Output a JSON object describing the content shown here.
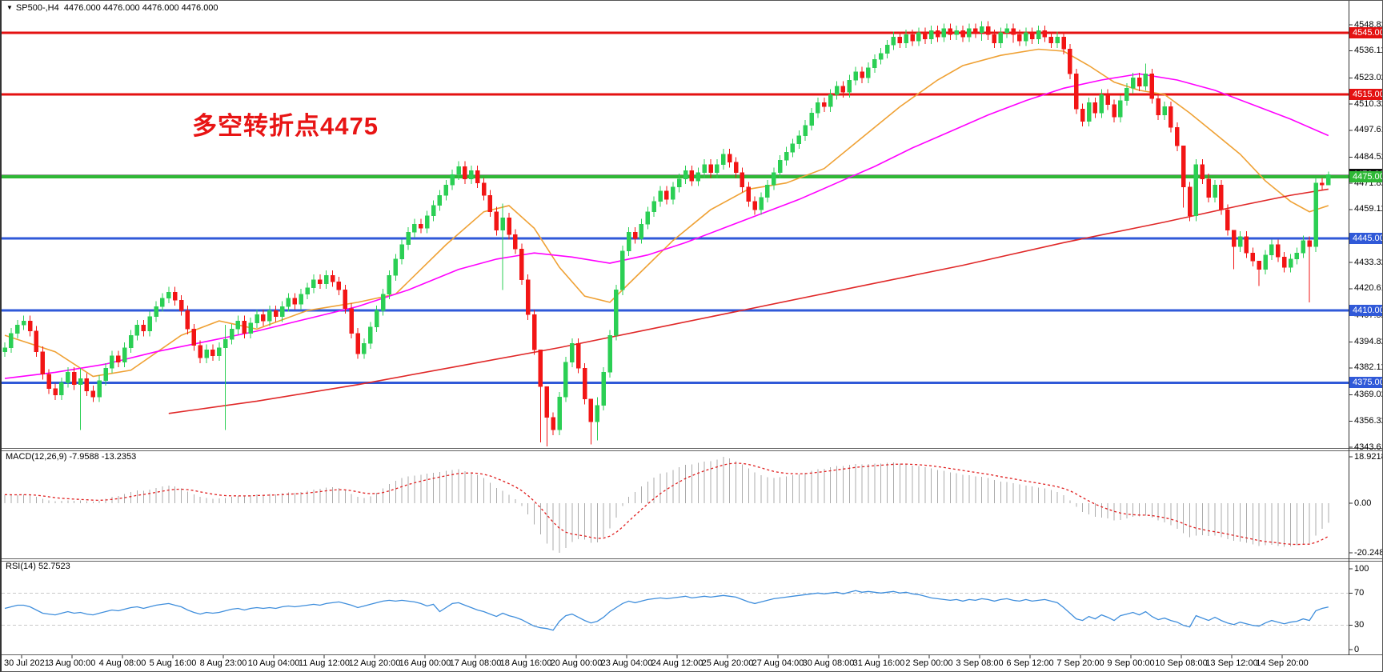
{
  "header": {
    "dropdown_icon": "▼",
    "symbol": "SP500-,H4",
    "quote": "4476.000 4476.000 4476.000 4476.000"
  },
  "annotation": {
    "text": "多空转折点4475",
    "color": "#e81414"
  },
  "chart_data": {
    "type": "candlestick",
    "title": "SP500- H4 with MACD and RSI",
    "main": {
      "y_axis": {
        "price_at_top": 4553.5,
        "price_at_bottom": 4343.615,
        "tick_labels": [
          4548.82,
          4536.115,
          4523.025,
          4510.32,
          4497.615,
          4484.525,
          4471.82,
          4459.115,
          4433.32,
          4420.615,
          4407.525,
          4394.82,
          4382.115,
          4369.025,
          4356.32,
          4343.615
        ]
      },
      "levels": [
        {
          "price": 4545,
          "label": "4545.000",
          "color": "#e41111",
          "width": 3
        },
        {
          "price": 4515,
          "label": "4515.000",
          "color": "#e41111",
          "width": 3
        },
        {
          "price": 4475,
          "label": "4475.000",
          "color": "#2eb835",
          "width": 4
        },
        {
          "price": 4445,
          "label": "4445.000",
          "color": "#3059d8",
          "width": 3
        },
        {
          "price": 4410,
          "label": "4410.000",
          "color": "#3059d8",
          "width": 3
        },
        {
          "price": 4375,
          "label": "4375.000",
          "color": "#3059d8",
          "width": 3
        }
      ],
      "current_price": {
        "price": 4476,
        "label": "4476.000",
        "line_color": "#9a9a9a",
        "badge_color": "#101010"
      },
      "candles": {
        "bull_color": "#2bcf54",
        "bear_color": "#f21515",
        "first_open": 4390,
        "default_wick": 2.5,
        "closes": [
          4392,
          4399,
          4403,
          4405,
          4400,
          4390,
          4379,
          4372,
          4369,
          4375,
          4380,
          4374,
          4377,
          4371,
          4368,
          4376,
          4382,
          4388,
          4385,
          4392,
          4398,
          4403,
          4400,
          4407,
          4412,
          4416,
          4419,
          4415,
          4410,
          4401,
          4393,
          4387,
          4391,
          4388,
          4392,
          4396,
          4401,
          4405,
          4399,
          4404,
          4408,
          4405,
          4410,
          4407,
          4412,
          4416,
          4413,
          4418,
          4421,
          4425,
          4423,
          4427,
          4424,
          4420,
          4411,
          4399,
          4389,
          4394,
          4402,
          4410,
          4418,
          4427,
          4435,
          4442,
          4448,
          4452,
          4450,
          4456,
          4461,
          4466,
          4471,
          4476,
          4480,
          4474,
          4478,
          4472,
          4466,
          4458,
          4449,
          4455,
          4447,
          4440,
          4425,
          4408,
          4391,
          4373,
          4358,
          4352,
          4368,
          4385,
          4394,
          4382,
          4367,
          4356,
          4364,
          4380,
          4398,
          4420,
          4439,
          4448,
          4445,
          4452,
          4458,
          4463,
          4468,
          4464,
          4470,
          4474,
          4478,
          4473,
          4477,
          4481,
          4477,
          4481,
          4486,
          4482,
          4477,
          4470,
          4463,
          4459,
          4465,
          4471,
          4477,
          4483,
          4487,
          4491,
          4495,
          4500,
          4506,
          4511,
          4509,
          4515,
          4519,
          4516,
          4522,
          4526,
          4523,
          4528,
          4532,
          4535,
          4539,
          4543,
          4540,
          4544,
          4541,
          4545,
          4542,
          4546,
          4543,
          4547,
          4544,
          4546,
          4543,
          4547,
          4545,
          4548,
          4544,
          4540,
          4545,
          4547,
          4544,
          4541,
          4545,
          4542,
          4546,
          4543,
          4540,
          4543,
          4537,
          4525,
          4508,
          4502,
          4511,
          4506,
          4515,
          4510,
          4504,
          4512,
          4518,
          4523,
          4519,
          4525,
          4513,
          4505,
          4509,
          4499,
          4490,
          4470,
          4456,
          4481,
          4474,
          4465,
          4471,
          4459,
          4449,
          4441,
          4446,
          4438,
          4434,
          4430,
          4437,
          4442,
          4436,
          4431,
          4435,
          4438,
          4444,
          4441,
          4472,
          4471,
          4476
        ],
        "wick_overrides": {
          "12": [
            4382,
            4352
          ],
          "35": [
            4403,
            4352
          ],
          "79": [
            4462,
            4420
          ],
          "85": [
            4378,
            4346
          ],
          "86": [
            4363,
            4344
          ],
          "93": [
            4360,
            4345
          ],
          "94": [
            4368,
            4347
          ],
          "155": [
            4550.5,
            4541
          ],
          "160": [
            4549.5,
            4540
          ],
          "181": [
            4530,
            4517
          ],
          "187": [
            4478,
            4460
          ],
          "195": [
            4446,
            4430
          ],
          "199": [
            4434,
            4422
          ],
          "207": [
            4446,
            4414
          ],
          "210": [
            4477.5,
            4473
          ]
        }
      },
      "moving_averages": [
        {
          "name": "ma-fast",
          "color": "#efa134",
          "points": [
            [
              0,
              4398
            ],
            [
              8,
              4390
            ],
            [
              14,
              4378
            ],
            [
              20,
              4381
            ],
            [
              28,
              4398
            ],
            [
              34,
              4405
            ],
            [
              40,
              4401
            ],
            [
              48,
              4410
            ],
            [
              56,
              4414
            ],
            [
              62,
              4418
            ],
            [
              70,
              4442
            ],
            [
              76,
              4458
            ],
            [
              80,
              4461
            ],
            [
              84,
              4450
            ],
            [
              88,
              4431
            ],
            [
              92,
              4417
            ],
            [
              96,
              4414
            ],
            [
              100,
              4426
            ],
            [
              106,
              4444
            ],
            [
              112,
              4459
            ],
            [
              118,
              4469
            ],
            [
              124,
              4472
            ],
            [
              130,
              4479
            ],
            [
              136,
              4494
            ],
            [
              142,
              4509
            ],
            [
              148,
              4522
            ],
            [
              152,
              4529
            ],
            [
              158,
              4534
            ],
            [
              164,
              4537
            ],
            [
              168,
              4536
            ],
            [
              172,
              4529
            ],
            [
              176,
              4521
            ],
            [
              180,
              4517
            ],
            [
              184,
              4515
            ],
            [
              188,
              4506
            ],
            [
              192,
              4496
            ],
            [
              196,
              4486
            ],
            [
              200,
              4473
            ],
            [
              204,
              4463
            ],
            [
              207,
              4458
            ],
            [
              210,
              4461
            ]
          ]
        },
        {
          "name": "ma-mid",
          "color": "#ff00ff",
          "points": [
            [
              0,
              4377
            ],
            [
              8,
              4380
            ],
            [
              16,
              4384
            ],
            [
              24,
              4390
            ],
            [
              32,
              4395
            ],
            [
              40,
              4400
            ],
            [
              48,
              4406
            ],
            [
              56,
              4412
            ],
            [
              64,
              4420
            ],
            [
              72,
              4430
            ],
            [
              78,
              4435
            ],
            [
              84,
              4438
            ],
            [
              90,
              4436
            ],
            [
              96,
              4433
            ],
            [
              102,
              4437
            ],
            [
              108,
              4443
            ],
            [
              114,
              4450
            ],
            [
              120,
              4457
            ],
            [
              126,
              4464
            ],
            [
              132,
              4472
            ],
            [
              138,
              4480
            ],
            [
              144,
              4489
            ],
            [
              150,
              4497
            ],
            [
              156,
              4505
            ],
            [
              162,
              4512
            ],
            [
              168,
              4518
            ],
            [
              174,
              4522
            ],
            [
              180,
              4525
            ],
            [
              186,
              4522
            ],
            [
              192,
              4517
            ],
            [
              198,
              4510
            ],
            [
              204,
              4503
            ],
            [
              210,
              4495
            ]
          ]
        },
        {
          "name": "ma-slow",
          "color": "#e02828",
          "points": [
            [
              26,
              4360
            ],
            [
              40,
              4366
            ],
            [
              56,
              4374
            ],
            [
              72,
              4383
            ],
            [
              88,
              4392
            ],
            [
              104,
              4402
            ],
            [
              120,
              4412
            ],
            [
              136,
              4422
            ],
            [
              152,
              4432
            ],
            [
              168,
              4443
            ],
            [
              184,
              4453
            ],
            [
              196,
              4461
            ],
            [
              204,
              4466
            ],
            [
              210,
              4469
            ]
          ]
        }
      ]
    },
    "macd": {
      "label": "MACD(12,26,9) -7.9588 -13.2353",
      "axis_labels": [
        "18.9218",
        "0.00",
        "-20.2489"
      ],
      "range": [
        -20.2489,
        18.9218
      ],
      "histogram_color": "#ababab",
      "signal_color": "#e02020",
      "values": [
        3.5,
        3.2,
        3.4,
        3.6,
        3.2,
        2.6,
        1.8,
        1.2,
        0.8,
        0.9,
        1.2,
        1.0,
        1.1,
        0.8,
        0.6,
        1.0,
        1.8,
        2.6,
        3.0,
        3.8,
        4.6,
        5.2,
        5.0,
        5.6,
        6.2,
        6.8,
        7.2,
        6.8,
        6.0,
        4.8,
        3.6,
        2.6,
        2.2,
        1.8,
        1.9,
        2.2,
        2.6,
        3.0,
        2.8,
        3.2,
        3.6,
        3.4,
        3.8,
        3.6,
        4.0,
        4.4,
        4.2,
        4.6,
        5.0,
        5.6,
        5.8,
        6.4,
        6.6,
        6.2,
        5.2,
        3.8,
        2.6,
        2.2,
        2.8,
        4.2,
        6.0,
        7.8,
        9.2,
        10.2,
        11.0,
        11.2,
        11.6,
        12.0,
        12.4,
        12.8,
        13.2,
        13.6,
        13.8,
        13.0,
        12.6,
        11.6,
        10.2,
        8.4,
        6.2,
        5.0,
        3.4,
        1.6,
        -1.2,
        -4.6,
        -8.6,
        -12.8,
        -16.4,
        -19.2,
        -20.2489,
        -18.2,
        -15.8,
        -14.6,
        -14.9,
        -16.2,
        -16.0,
        -13.8,
        -10.2,
        -5.8,
        -1.2,
        2.6,
        4.6,
        6.8,
        8.8,
        10.4,
        12.0,
        12.6,
        13.6,
        14.6,
        15.6,
        15.8,
        16.4,
        17.0,
        17.2,
        17.8,
        18.9218,
        18.2,
        17.2,
        15.8,
        14.2,
        12.6,
        11.4,
        10.6,
        10.2,
        10.6,
        11.0,
        11.4,
        11.8,
        12.4,
        13.2,
        13.8,
        14.0,
        14.6,
        15.2,
        15.2,
        15.6,
        16.0,
        15.8,
        16.0,
        16.2,
        16.2,
        16.4,
        16.6,
        16.2,
        16.0,
        15.4,
        15.2,
        14.6,
        14.2,
        13.6,
        13.2,
        12.6,
        12.2,
        11.6,
        11.4,
        11.0,
        10.8,
        10.2,
        9.4,
        8.8,
        8.6,
        8.2,
        7.6,
        7.2,
        6.8,
        6.4,
        6.0,
        5.4,
        4.6,
        3.2,
        1.2,
        -1.4,
        -3.6,
        -4.6,
        -5.6,
        -5.8,
        -6.2,
        -7.0,
        -6.8,
        -6.2,
        -5.6,
        -5.4,
        -5.0,
        -5.8,
        -7.0,
        -7.8,
        -9.0,
        -10.4,
        -12.2,
        -13.8,
        -13.2,
        -13.0,
        -13.4,
        -13.2,
        -13.8,
        -14.6,
        -15.4,
        -15.6,
        -16.2,
        -16.8,
        -17.4,
        -17.2,
        -17.0,
        -17.4,
        -17.8,
        -17.6,
        -17.2,
        -16.4,
        -16.6,
        -13.2,
        -10.4,
        -7.9588
      ]
    },
    "rsi": {
      "label": "RSI(14) 52.7523",
      "axis_labels": [
        "100",
        "70",
        "30",
        "0"
      ],
      "range": [
        0,
        100
      ],
      "guide_levels": [
        70,
        30
      ],
      "line_color": "#3f8edc",
      "guide_color": "#c8c8c8",
      "values": [
        51,
        53,
        55,
        55,
        53,
        49,
        45,
        44,
        43,
        45,
        47,
        45,
        46,
        44,
        43,
        45,
        47,
        49,
        48,
        50,
        52,
        53,
        51,
        53,
        55,
        56,
        57,
        55,
        53,
        49,
        46,
        44,
        46,
        45,
        46,
        48,
        50,
        51,
        49,
        51,
        52,
        51,
        52,
        51,
        53,
        54,
        53,
        54,
        55,
        56,
        55,
        57,
        58,
        59,
        57,
        55,
        52,
        54,
        56,
        58,
        60,
        61,
        60,
        61,
        60,
        59,
        57,
        54,
        56,
        47,
        52,
        57,
        58,
        55,
        52,
        49,
        47,
        44,
        41,
        45,
        42,
        40,
        37,
        33,
        29,
        27,
        26,
        24,
        35,
        42,
        44,
        40,
        36,
        33,
        35,
        40,
        47,
        52,
        57,
        60,
        58,
        60,
        62,
        63,
        64,
        63,
        64,
        65,
        66,
        64,
        65,
        66,
        65,
        66,
        67,
        66,
        65,
        62,
        59,
        57,
        59,
        61,
        63,
        64,
        65,
        66,
        67,
        68,
        69,
        70,
        69,
        70,
        71,
        69,
        71,
        73,
        71,
        72,
        71,
        70,
        71,
        72,
        70,
        71,
        69,
        68,
        66,
        64,
        63,
        62,
        61,
        62,
        60,
        62,
        61,
        63,
        62,
        60,
        62,
        63,
        61,
        60,
        62,
        60,
        61,
        62,
        60,
        58,
        52,
        45,
        38,
        36,
        41,
        38,
        43,
        40,
        36,
        42,
        44,
        46,
        43,
        47,
        41,
        37,
        39,
        36,
        34,
        30,
        28,
        42,
        39,
        36,
        40,
        36,
        33,
        31,
        34,
        32,
        30,
        29,
        33,
        36,
        34,
        32,
        34,
        35,
        38,
        36,
        48,
        51,
        52.75
      ]
    },
    "time_labels": [
      "30 Jul 2021",
      "3 Aug 00:00",
      "4 Aug 08:00",
      "5 Aug 16:00",
      "8 Aug 23:00",
      "10 Aug 04:00",
      "11 Aug 12:00",
      "12 Aug 20:00",
      "16 Aug 00:00",
      "17 Aug 08:00",
      "18 Aug 16:00",
      "20 Aug 00:00",
      "23 Aug 04:00",
      "24 Aug 12:00",
      "25 Aug 20:00",
      "27 Aug 04:00",
      "30 Aug 08:00",
      "31 Aug 16:00",
      "2 Sep 00:00",
      "3 Sep 08:00",
      "6 Sep 12:00",
      "7 Sep 20:00",
      "9 Sep 00:00",
      "10 Sep 08:00",
      "13 Sep 12:00",
      "14 Sep 20:00"
    ]
  }
}
